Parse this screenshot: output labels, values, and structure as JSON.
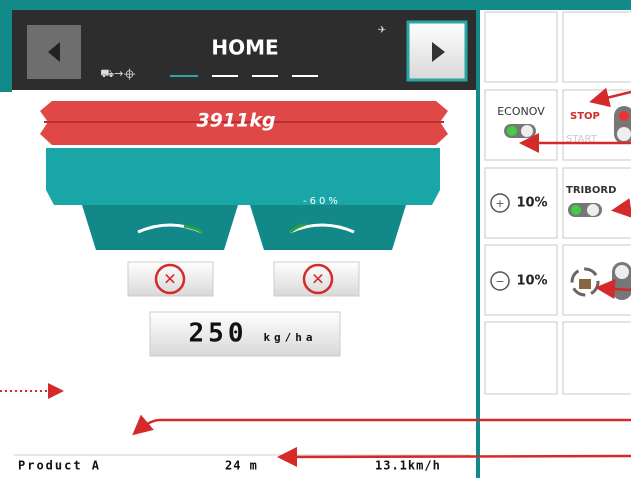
{
  "header": {
    "title": "HOME"
  },
  "hopper": {
    "weight": "3911kg",
    "right_setting": "-60%"
  },
  "rate": {
    "value": "250",
    "unit": "kg/ha"
  },
  "buttons": {
    "econov": "ECONOV",
    "stop": "STOP",
    "start": "START",
    "left_step": "10%",
    "tribord": "TRIBORD",
    "right_step": "10%"
  },
  "status": {
    "product": "Product A",
    "width": "24 m",
    "speed": "13.1km/h"
  }
}
